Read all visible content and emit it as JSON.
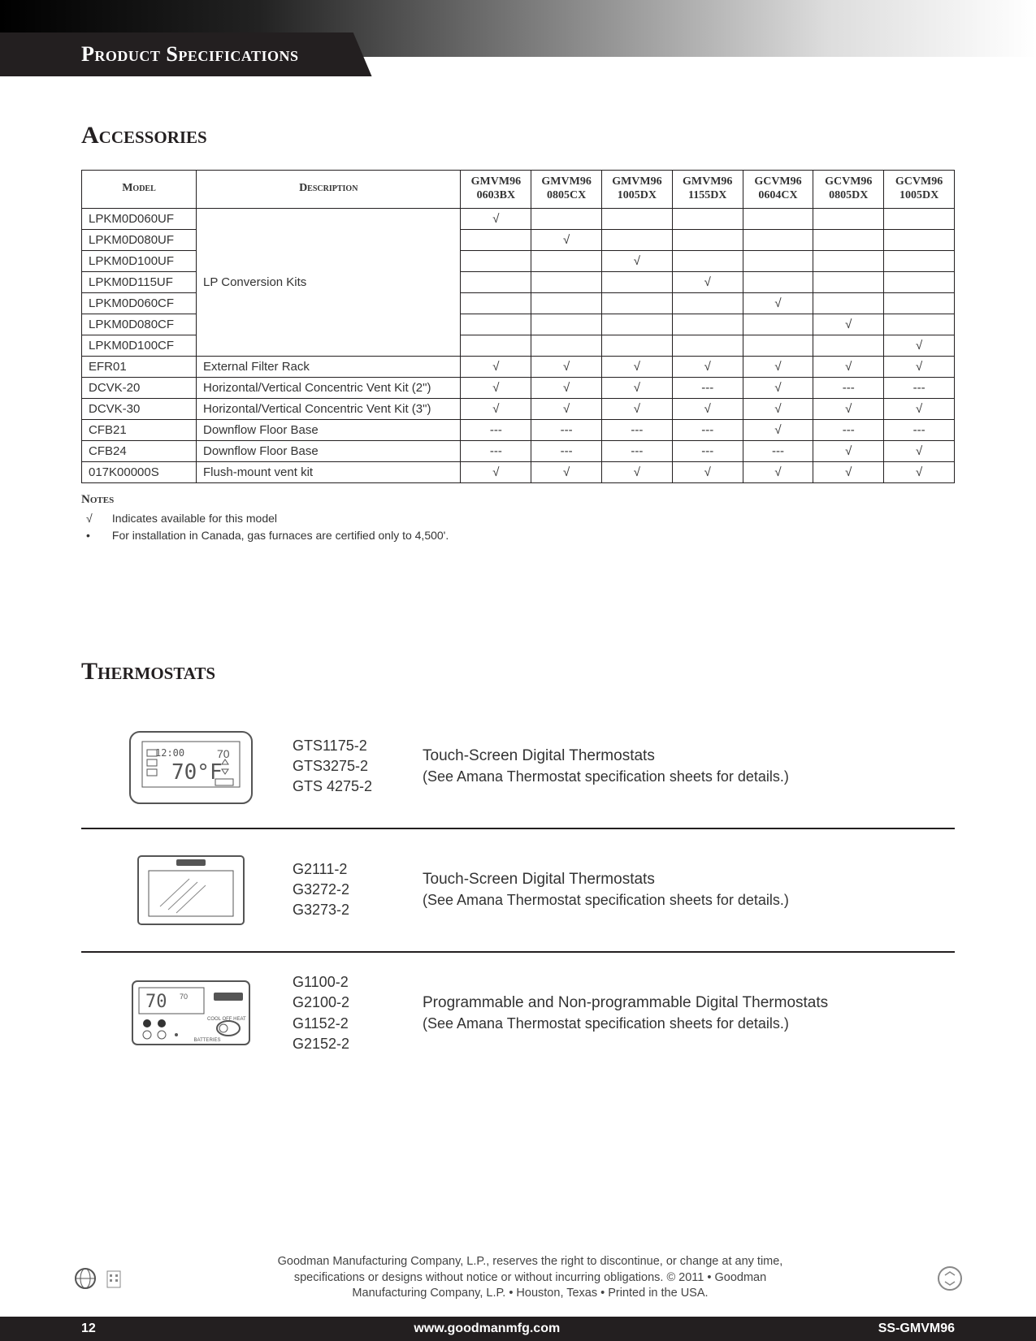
{
  "header": {
    "tab": "Product Specifications"
  },
  "sections": {
    "accessories_title": "Accessories",
    "thermostats_title": "Thermostats"
  },
  "table": {
    "headers": {
      "model": "Model",
      "description": "Description",
      "cols": [
        {
          "l1": "GMVM96",
          "l2": "0603BX"
        },
        {
          "l1": "GMVM96",
          "l2": "0805CX"
        },
        {
          "l1": "GMVM96",
          "l2": "1005DX"
        },
        {
          "l1": "GMVM96",
          "l2": "1155DX"
        },
        {
          "l1": "GCVM96",
          "l2": "0604CX"
        },
        {
          "l1": "GCVM96",
          "l2": "0805DX"
        },
        {
          "l1": "GCVM96",
          "l2": "1005DX"
        }
      ]
    },
    "rows": [
      {
        "model": "LPKM0D060UF",
        "desc": "LP Conversion Kits",
        "marks": [
          "√",
          "",
          "",
          "",
          "",
          "",
          ""
        ],
        "descSpan": 7,
        "showDesc": true
      },
      {
        "model": "LPKM0D080UF",
        "marks": [
          "",
          "√",
          "",
          "",
          "",
          "",
          ""
        ]
      },
      {
        "model": "LPKM0D100UF",
        "marks": [
          "",
          "",
          "√",
          "",
          "",
          "",
          ""
        ]
      },
      {
        "model": "LPKM0D115UF",
        "marks": [
          "",
          "",
          "",
          "√",
          "",
          "",
          ""
        ]
      },
      {
        "model": "LPKM0D060CF",
        "marks": [
          "",
          "",
          "",
          "",
          "√",
          "",
          ""
        ]
      },
      {
        "model": "LPKM0D080CF",
        "marks": [
          "",
          "",
          "",
          "",
          "",
          "√",
          ""
        ]
      },
      {
        "model": "LPKM0D100CF",
        "marks": [
          "",
          "",
          "",
          "",
          "",
          "",
          "√"
        ]
      },
      {
        "model": "EFR01",
        "desc": "External Filter Rack",
        "marks": [
          "√",
          "√",
          "√",
          "√",
          "√",
          "√",
          "√"
        ]
      },
      {
        "model": "DCVK-20",
        "desc": "Horizontal/Vertical Concentric Vent Kit (2\")",
        "marks": [
          "√",
          "√",
          "√",
          "---",
          "√",
          "---",
          "---"
        ]
      },
      {
        "model": "DCVK-30",
        "desc": "Horizontal/Vertical Concentric Vent Kit (3\")",
        "marks": [
          "√",
          "√",
          "√",
          "√",
          "√",
          "√",
          "√"
        ]
      },
      {
        "model": "CFB21",
        "desc": "Downflow Floor Base",
        "marks": [
          "---",
          "---",
          "---",
          "---",
          "√",
          "---",
          "---"
        ]
      },
      {
        "model": "CFB24",
        "desc": "Downflow Floor Base",
        "marks": [
          "---",
          "---",
          "---",
          "---",
          "---",
          "√",
          "√"
        ]
      },
      {
        "model": "017K00000S",
        "desc": "Flush-mount vent kit",
        "marks": [
          "√",
          "√",
          "√",
          "√",
          "√",
          "√",
          "√"
        ]
      }
    ]
  },
  "notes": {
    "title": "Notes",
    "line1_sym": "√",
    "line1_text": "Indicates available for this model",
    "line2_sym": "•",
    "line2_text": "For installation in Canada, gas furnaces are certified only to 4,500'."
  },
  "thermostats": [
    {
      "models": [
        "GTS1175-2",
        "GTS3275-2",
        "GTS 4275-2"
      ],
      "title": "Touch-Screen Digital Thermostats",
      "sub": "(See Amana Thermostat specification sheets for details.)",
      "icon": "thermo-lcd"
    },
    {
      "models": [
        "G2111-2",
        "G3272-2",
        "G3273-2"
      ],
      "title": "Touch-Screen Digital Thermostats",
      "sub": "(See Amana Thermostat specification sheets for details.)",
      "icon": "thermo-touch"
    },
    {
      "models": [
        "G1100-2",
        "G2100-2",
        "G1152-2",
        "G2152-2"
      ],
      "title": "Programmable and Non-programmable Digital Thermostats",
      "sub": "(See Amana Thermostat specification sheets for details.)",
      "icon": "thermo-prog"
    }
  ],
  "legal": "Goodman Manufacturing Company, L.P., reserves the right to discontinue, or change at any time, specifications or designs without notice or without incurring obligations. © 2011  •  Goodman Manufacturing Company, L.P.  •  Houston, Texas  •  Printed in the USA.",
  "footer": {
    "page": "12",
    "url": "www.goodmanmfg.com",
    "doc": "SS-GMVM96"
  }
}
